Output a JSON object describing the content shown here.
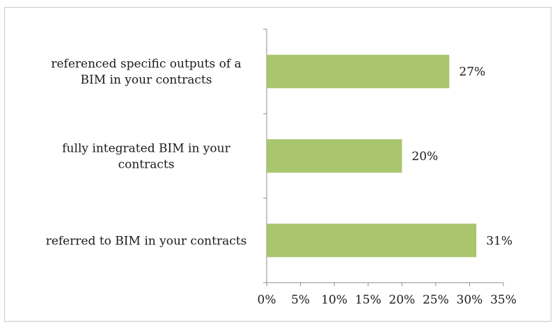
{
  "chart_data": {
    "type": "bar",
    "orientation": "horizontal",
    "categories": [
      [
        "referenced specific outputs of a",
        "BIM in your contracts"
      ],
      [
        "fully integrated BIM in your",
        "contracts"
      ],
      [
        "referred to BIM in your contracts"
      ]
    ],
    "values": [
      27,
      20,
      31
    ],
    "data_labels": [
      "27%",
      "20%",
      "31%"
    ],
    "x_ticks": [
      "0%",
      "5%",
      "10%",
      "15%",
      "20%",
      "25%",
      "30%",
      "35%"
    ],
    "xlim": [
      0,
      35
    ],
    "title": "",
    "xlabel": "",
    "ylabel": "",
    "grid": false,
    "legend": "none",
    "bar_color": "#a9c56e",
    "axis_color": "#8c8c8c"
  }
}
